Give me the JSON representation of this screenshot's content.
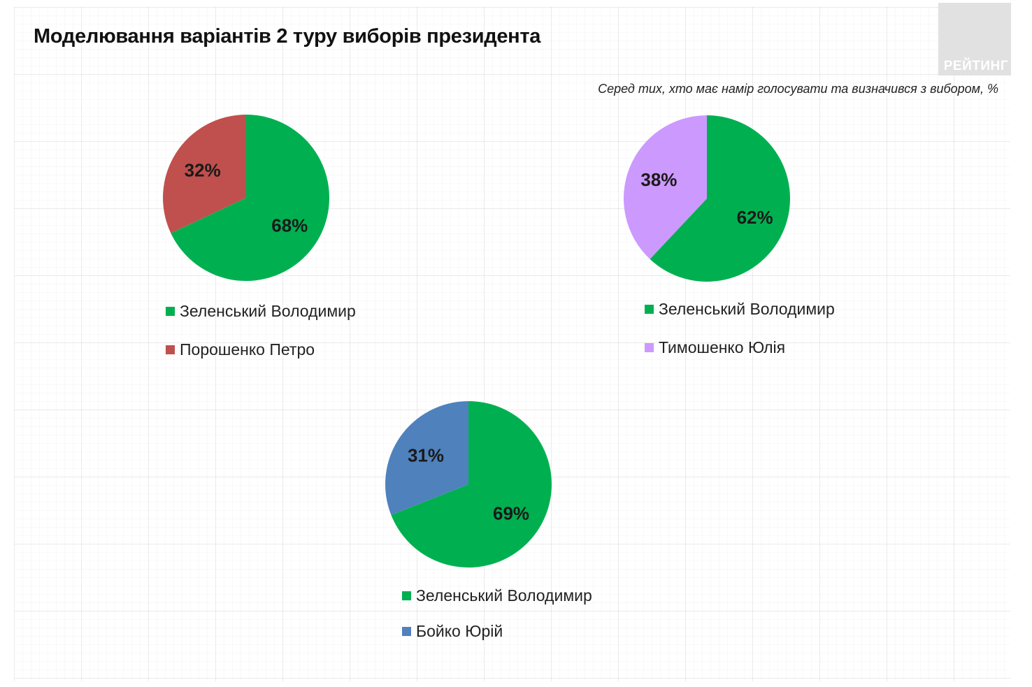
{
  "title": "Моделювання варіантів 2 туру виборів президента",
  "subtitle": "Серед тих, хто має намір голосувати  та визначився з вибором, %",
  "logo_text": "РЕЙТИНГ",
  "colors": {
    "zelensky": "#00b050",
    "poroshenko": "#c0504d",
    "tymoshenko": "#cc99ff",
    "boyko": "#4f81bd"
  },
  "chart_data": [
    {
      "type": "pie",
      "categories": [
        "Зеленський Володимир",
        "Порошенко Петро"
      ],
      "values": [
        68,
        32
      ],
      "labels": [
        "68%",
        "32%"
      ],
      "colors": [
        "#00b050",
        "#c0504d"
      ],
      "legend_position": "bottom"
    },
    {
      "type": "pie",
      "categories": [
        "Зеленський Володимир",
        "Тимошенко Юлія"
      ],
      "values": [
        62,
        38
      ],
      "labels": [
        "62%",
        "38%"
      ],
      "colors": [
        "#00b050",
        "#cc99ff"
      ],
      "legend_position": "bottom"
    },
    {
      "type": "pie",
      "categories": [
        "Зеленський Володимир",
        "Бойко Юрій"
      ],
      "values": [
        69,
        31
      ],
      "labels": [
        "69%",
        "31%"
      ],
      "colors": [
        "#00b050",
        "#4f81bd"
      ],
      "legend_position": "bottom"
    }
  ]
}
